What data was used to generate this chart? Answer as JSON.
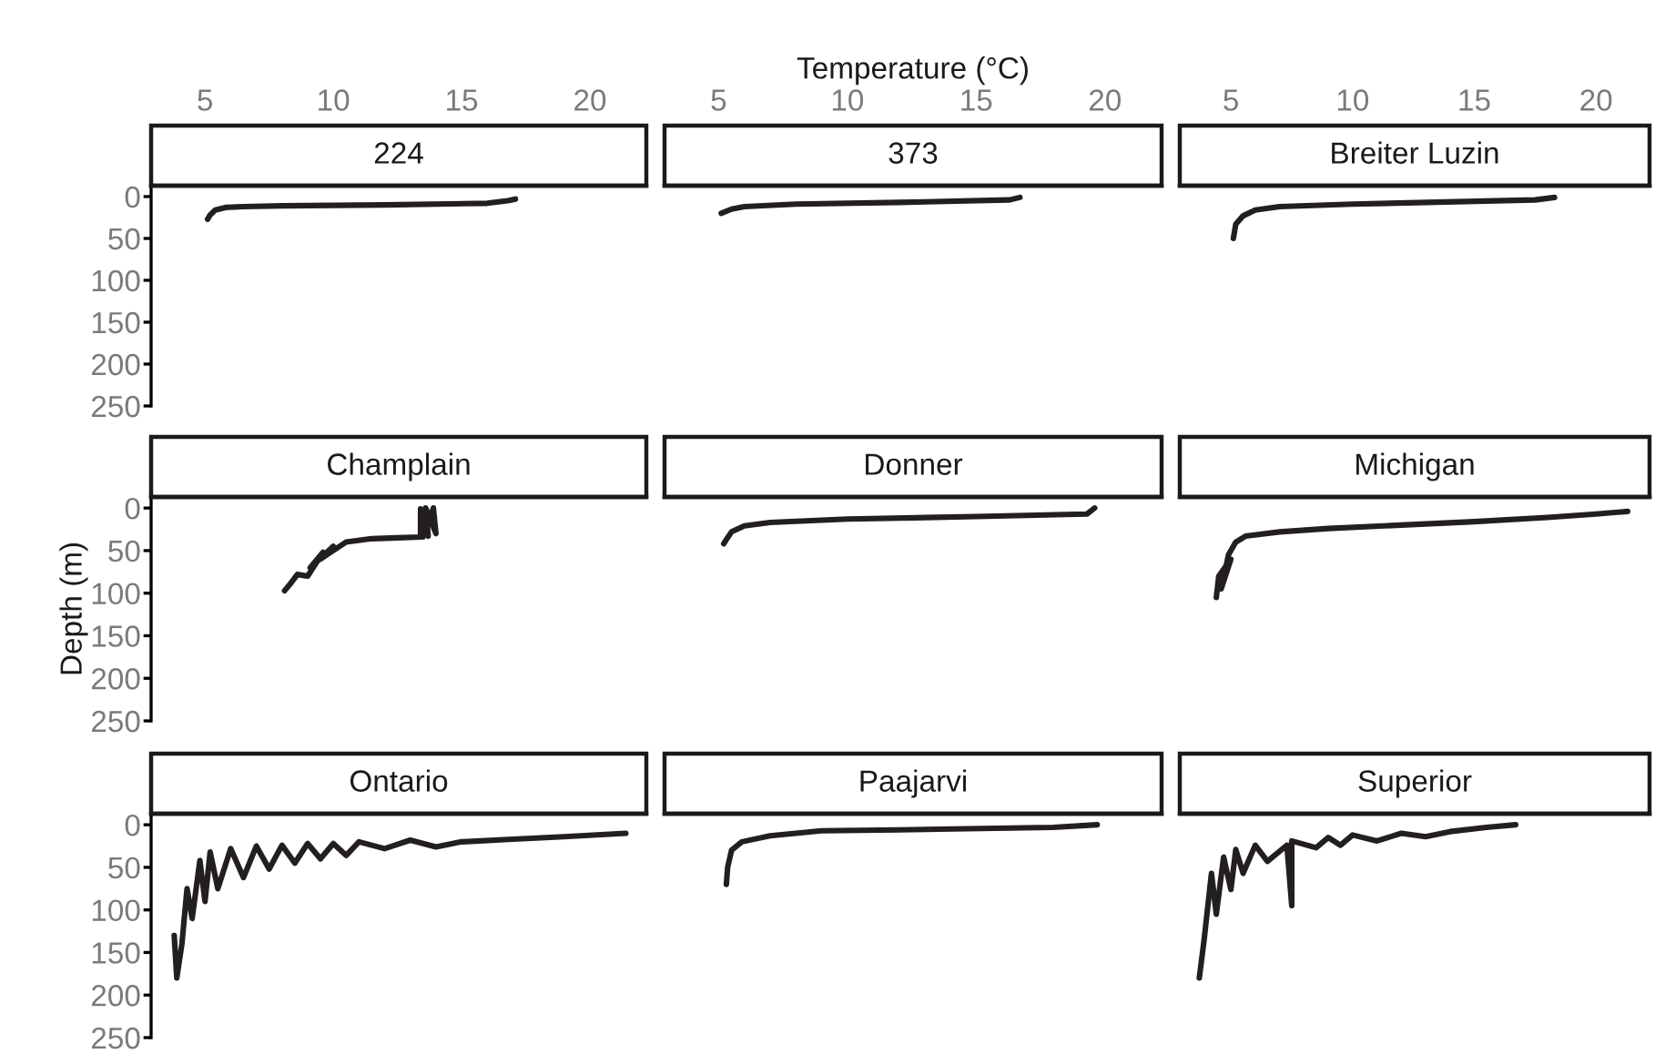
{
  "chart_data": [
    {
      "type": "line",
      "title": "224",
      "color": "#231f20",
      "x": [
        17.1,
        16.8,
        16,
        12,
        8,
        6.5,
        5.8,
        5.4,
        5.2,
        5.1
      ],
      "values": [
        3,
        5,
        8,
        10,
        11,
        12,
        13,
        16,
        22,
        27
      ],
      "xlim": [
        2.9,
        22.2
      ],
      "ylim": [
        250,
        -13
      ],
      "xticks": [
        5,
        10,
        15,
        20
      ],
      "yticks": [
        0,
        50,
        100,
        150,
        200,
        250
      ]
    },
    {
      "type": "line",
      "title": "373",
      "xlabel": "Temperature (°C)",
      "color": "#231f20",
      "x": [
        16.7,
        16.3,
        12,
        8,
        6,
        5.5,
        5.1
      ],
      "values": [
        1,
        4,
        7,
        9,
        12,
        15,
        20
      ],
      "xlim": [
        2.9,
        22.2
      ],
      "ylim": [
        250,
        -13
      ],
      "xticks": [
        5,
        10,
        15,
        20
      ],
      "yticks": [
        0,
        50,
        100,
        150,
        200,
        250
      ],
      "tick_labels": "x"
    },
    {
      "type": "line",
      "title": "Breiter Luzin",
      "color": "#231f20",
      "x": [
        18.3,
        17.5,
        10,
        7,
        6,
        5.5,
        5.2,
        5.1
      ],
      "values": [
        1,
        4,
        9,
        12,
        16,
        23,
        33,
        50
      ],
      "xlim": [
        2.9,
        22.2
      ],
      "ylim": [
        250,
        -13
      ],
      "xticks": [
        5,
        10,
        15,
        20
      ],
      "yticks": [
        0,
        50,
        100,
        150,
        200,
        250
      ],
      "tick_labels": "x"
    },
    {
      "type": "line",
      "title": "Champlain",
      "ylabel": "Depth (m)",
      "color": "#231f20",
      "x": [
        8.1,
        8.3,
        8.6,
        9.0,
        9.6,
        9.1,
        10.0,
        9.5,
        10.5,
        11.5,
        12.5,
        13.4,
        13.4,
        13.7,
        13.6,
        14.0,
        13.9,
        13.5
      ],
      "values": [
        97,
        90,
        78,
        80,
        52,
        70,
        45,
        60,
        40,
        36,
        35,
        34,
        1,
        33,
        0,
        30,
        0,
        34
      ],
      "xlim": [
        2.9,
        22.2
      ],
      "ylim": [
        250,
        -13
      ],
      "xticks": [
        5,
        10,
        15,
        20
      ],
      "yticks": [
        0,
        50,
        100,
        150,
        200,
        250
      ],
      "tick_labels": "y"
    },
    {
      "type": "line",
      "title": "Donner",
      "color": "#231f20",
      "x": [
        19.6,
        19.3,
        15,
        10,
        7,
        6,
        5.5,
        5.3,
        5.2
      ],
      "values": [
        0,
        7,
        10,
        13,
        17,
        21,
        28,
        37,
        42
      ],
      "xlim": [
        2.9,
        22.2
      ],
      "ylim": [
        250,
        -13
      ],
      "xticks": [
        5,
        10,
        15,
        20
      ],
      "yticks": [
        0,
        50,
        100,
        150,
        200,
        250
      ],
      "tick_labels": false
    },
    {
      "type": "line",
      "title": "Michigan",
      "color": "#231f20",
      "x": [
        21.3,
        20,
        18,
        15,
        12,
        9,
        7,
        5.6,
        5.2,
        4.9,
        4.6,
        5.0,
        4.5,
        4.4
      ],
      "values": [
        4,
        7,
        11,
        16,
        20,
        24,
        28,
        33,
        40,
        55,
        95,
        60,
        80,
        105
      ],
      "xlim": [
        2.9,
        22.2
      ],
      "ylim": [
        250,
        -13
      ],
      "xticks": [
        5,
        10,
        15,
        20
      ],
      "yticks": [
        0,
        50,
        100,
        150,
        200,
        250
      ],
      "tick_labels": false
    },
    {
      "type": "line",
      "title": "Ontario",
      "color": "#231f20",
      "x": [
        21.4,
        19,
        17,
        15,
        14,
        13,
        12,
        11,
        10.5,
        10,
        9.5,
        9,
        8.5,
        8,
        7.5,
        7,
        6.5,
        6,
        5.5,
        5.2,
        5,
        4.8,
        4.5,
        4.3,
        4.1,
        3.9,
        3.8
      ],
      "values": [
        10,
        14,
        17,
        20,
        26,
        18,
        28,
        20,
        36,
        22,
        40,
        22,
        45,
        24,
        52,
        25,
        62,
        28,
        75,
        32,
        90,
        42,
        110,
        75,
        140,
        180,
        130
      ],
      "xlim": [
        2.9,
        22.2
      ],
      "ylim": [
        250,
        -13
      ],
      "xticks": [
        5,
        10,
        15,
        20
      ],
      "yticks": [
        0,
        50,
        100,
        150,
        200,
        250
      ],
      "tick_labels": "y"
    },
    {
      "type": "line",
      "title": "Paajarvi",
      "color": "#231f20",
      "x": [
        19.7,
        18,
        12,
        9,
        7,
        5.9,
        5.5,
        5.35,
        5.3
      ],
      "values": [
        0,
        3,
        6,
        7,
        13,
        20,
        30,
        50,
        70
      ],
      "xlim": [
        2.9,
        22.2
      ],
      "ylim": [
        250,
        -13
      ],
      "xticks": [
        5,
        10,
        15,
        20
      ],
      "yticks": [
        0,
        50,
        100,
        150,
        200,
        250
      ],
      "tick_labels": false
    },
    {
      "type": "line",
      "title": "Superior",
      "color": "#231f20",
      "x": [
        16.7,
        15.5,
        14,
        13,
        12,
        11,
        10,
        9.5,
        9,
        8.5,
        7.5,
        7.5,
        7.3,
        6.5,
        6,
        5.5,
        5.2,
        5,
        4.7,
        4.4,
        4.2,
        3.9,
        3.7
      ],
      "values": [
        0,
        3,
        8,
        14,
        10,
        19,
        12,
        24,
        15,
        27,
        19,
        95,
        24,
        43,
        24,
        57,
        29,
        76,
        38,
        105,
        57,
        135,
        180
      ],
      "xlim": [
        2.9,
        22.2
      ],
      "ylim": [
        250,
        -13
      ],
      "xticks": [
        5,
        10,
        15,
        20
      ],
      "yticks": [
        0,
        50,
        100,
        150,
        200,
        250
      ],
      "tick_labels": false
    }
  ]
}
